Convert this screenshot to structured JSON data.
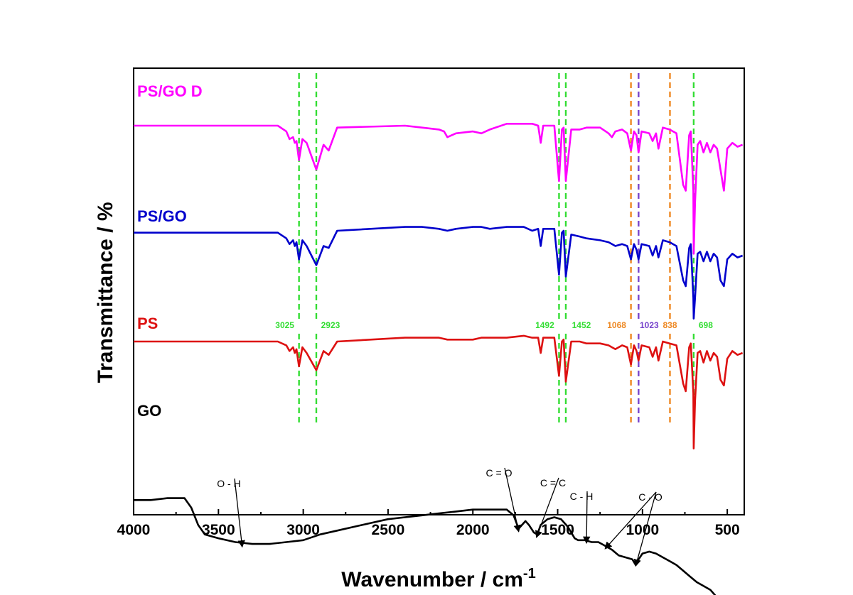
{
  "chart_data": {
    "type": "line",
    "xlabel": "Wavenumber / cm",
    "xlabel_superscript": "-1",
    "ylabel": "Transmittance / %",
    "xlim": [
      4000,
      400
    ],
    "x_reversed": true,
    "xticks": [
      4000,
      3500,
      3000,
      2500,
      2000,
      1500,
      1000,
      500
    ],
    "yticks": [],
    "ylim": [
      0,
      10
    ],
    "grid": false,
    "legend": "inline labels",
    "series": [
      {
        "name": "PS/GO D",
        "color": "#ff00ff",
        "x": [
          4000,
          3150,
          3100,
          3081,
          3060,
          3050,
          3040,
          3025,
          3005,
          2980,
          2923,
          2880,
          2850,
          2800,
          2400,
          2300,
          2200,
          2170,
          2150,
          2100,
          2000,
          1950,
          1900,
          1800,
          1700,
          1650,
          1615,
          1600,
          1585,
          1560,
          1520,
          1492,
          1475,
          1465,
          1452,
          1420,
          1370,
          1330,
          1250,
          1200,
          1180,
          1160,
          1120,
          1090,
          1068,
          1050,
          1035,
          1023,
          1005,
          960,
          940,
          920,
          906,
          880,
          840,
          800,
          760,
          745,
          725,
          715,
          700,
          698,
          690,
          675,
          660,
          640,
          620,
          600,
          580,
          560,
          540,
          520,
          500,
          470,
          440,
          410
        ],
        "y": [
          9.0,
          9.0,
          8.85,
          8.65,
          8.7,
          8.55,
          8.6,
          8.1,
          8.65,
          8.55,
          7.85,
          8.5,
          8.35,
          8.95,
          9.0,
          8.95,
          8.9,
          8.85,
          8.7,
          8.8,
          8.85,
          8.8,
          8.9,
          9.05,
          9.05,
          9.05,
          9.0,
          8.55,
          9.0,
          9.0,
          9.0,
          7.55,
          8.9,
          8.95,
          7.55,
          8.9,
          8.9,
          8.95,
          8.95,
          8.8,
          8.7,
          8.85,
          8.9,
          8.8,
          8.35,
          8.85,
          8.75,
          8.3,
          8.85,
          8.8,
          8.6,
          8.8,
          8.4,
          8.95,
          8.9,
          8.8,
          7.45,
          7.3,
          8.75,
          8.85,
          7.3,
          5.65,
          7.0,
          8.5,
          8.6,
          8.3,
          8.55,
          8.3,
          8.5,
          8.4,
          7.85,
          7.3,
          8.4,
          8.55,
          8.45,
          8.5
        ]
      },
      {
        "name": "PS/GO",
        "color": "#0000cc",
        "x": [
          4000,
          3150,
          3100,
          3081,
          3060,
          3050,
          3040,
          3025,
          3005,
          2980,
          2923,
          2880,
          2850,
          2800,
          2400,
          2300,
          2200,
          2150,
          2100,
          2000,
          1950,
          1900,
          1800,
          1700,
          1650,
          1615,
          1600,
          1585,
          1560,
          1520,
          1492,
          1475,
          1465,
          1452,
          1420,
          1370,
          1330,
          1250,
          1200,
          1180,
          1160,
          1120,
          1090,
          1068,
          1050,
          1035,
          1023,
          1005,
          960,
          940,
          920,
          906,
          880,
          840,
          800,
          760,
          745,
          725,
          715,
          700,
          698,
          690,
          675,
          660,
          640,
          620,
          600,
          580,
          560,
          540,
          520,
          500,
          470,
          440,
          410
        ],
        "y": [
          6.2,
          6.2,
          6.05,
          5.9,
          6.0,
          5.85,
          5.95,
          5.5,
          6.0,
          5.85,
          5.35,
          5.85,
          5.8,
          6.25,
          6.35,
          6.35,
          6.3,
          6.25,
          6.3,
          6.35,
          6.35,
          6.3,
          6.35,
          6.35,
          6.25,
          6.3,
          5.85,
          6.3,
          6.3,
          6.3,
          5.1,
          6.2,
          6.25,
          5.05,
          6.15,
          6.1,
          6.05,
          6.0,
          5.95,
          5.9,
          5.85,
          5.9,
          5.85,
          5.5,
          5.9,
          5.75,
          5.5,
          5.9,
          5.85,
          5.6,
          5.85,
          5.55,
          6.0,
          5.95,
          5.85,
          4.95,
          4.8,
          5.8,
          5.9,
          4.5,
          3.95,
          4.5,
          5.65,
          5.7,
          5.45,
          5.7,
          5.45,
          5.65,
          5.55,
          4.95,
          4.8,
          5.5,
          5.65,
          5.55,
          5.6
        ]
      },
      {
        "name": "PS",
        "color": "#dd1111",
        "x": [
          4000,
          3150,
          3100,
          3081,
          3060,
          3050,
          3040,
          3025,
          3005,
          2980,
          2923,
          2880,
          2850,
          2800,
          2400,
          2300,
          2200,
          2150,
          2100,
          2000,
          1950,
          1900,
          1800,
          1700,
          1650,
          1615,
          1600,
          1585,
          1560,
          1520,
          1492,
          1475,
          1465,
          1452,
          1420,
          1370,
          1330,
          1250,
          1200,
          1180,
          1160,
          1120,
          1090,
          1068,
          1050,
          1035,
          1023,
          1005,
          960,
          940,
          920,
          906,
          880,
          840,
          800,
          760,
          745,
          725,
          715,
          700,
          698,
          690,
          675,
          660,
          640,
          620,
          600,
          580,
          560,
          540,
          520,
          500,
          470,
          440,
          410
        ],
        "y": [
          3.35,
          3.35,
          3.25,
          3.1,
          3.2,
          3.05,
          3.15,
          2.7,
          3.2,
          3.05,
          2.6,
          3.1,
          3.0,
          3.35,
          3.45,
          3.45,
          3.45,
          3.4,
          3.4,
          3.4,
          3.45,
          3.45,
          3.45,
          3.5,
          3.45,
          3.45,
          3.05,
          3.45,
          3.45,
          3.45,
          2.45,
          3.35,
          3.4,
          2.3,
          3.35,
          3.35,
          3.3,
          3.3,
          3.25,
          3.2,
          3.15,
          3.25,
          3.2,
          2.75,
          3.25,
          3.1,
          2.85,
          3.25,
          3.2,
          2.95,
          3.2,
          2.85,
          3.35,
          3.3,
          3.25,
          2.25,
          2.05,
          3.2,
          3.3,
          2.0,
          0.55,
          1.8,
          3.05,
          3.1,
          2.8,
          3.1,
          2.85,
          3.05,
          2.95,
          2.35,
          2.2,
          2.9,
          3.1,
          3.0,
          3.05
        ]
      },
      {
        "name": "GO",
        "color": "#000000",
        "x": [
          4000,
          3900,
          3800,
          3700,
          3660,
          3620,
          3580,
          3500,
          3400,
          3300,
          3200,
          3100,
          3000,
          2900,
          2800,
          2700,
          2600,
          2500,
          2400,
          2300,
          2200,
          2100,
          2000,
          1900,
          1800,
          1760,
          1730,
          1710,
          1690,
          1670,
          1640,
          1620,
          1600,
          1560,
          1520,
          1480,
          1440,
          1400,
          1380,
          1340,
          1300,
          1260,
          1220,
          1180,
          1140,
          1100,
          1060,
          1040,
          1030,
          1000,
          960,
          920,
          880,
          840,
          800,
          760,
          720,
          680,
          640,
          600,
          560,
          520,
          480,
          440,
          410
        ],
        "y": [
          -0.8,
          -0.8,
          -0.75,
          -0.75,
          -1.0,
          -1.45,
          -1.7,
          -1.8,
          -1.9,
          -1.95,
          -1.95,
          -1.9,
          -1.85,
          -1.7,
          -1.6,
          -1.5,
          -1.4,
          -1.3,
          -1.25,
          -1.2,
          -1.15,
          -1.1,
          -1.05,
          -1.05,
          -1.05,
          -1.2,
          -1.55,
          -1.45,
          -1.35,
          -1.45,
          -1.65,
          -1.7,
          -1.45,
          -1.3,
          -1.25,
          -1.3,
          -1.5,
          -1.8,
          -1.85,
          -1.85,
          -1.9,
          -1.9,
          -2.0,
          -2.1,
          -2.25,
          -2.3,
          -2.35,
          -2.5,
          -2.4,
          -2.2,
          -2.15,
          -2.2,
          -2.3,
          -2.4,
          -2.5,
          -2.65,
          -2.8,
          -2.95,
          -3.05,
          -3.15,
          -3.35,
          -3.5,
          -3.65,
          -3.8,
          -3.95
        ]
      }
    ],
    "reference_lines": [
      {
        "x": 3025,
        "label": "3025",
        "color": "#33dd33"
      },
      {
        "x": 2923,
        "label": "2923",
        "color": "#33dd33"
      },
      {
        "x": 1492,
        "label": "1492",
        "color": "#33dd33"
      },
      {
        "x": 1452,
        "label": "1452",
        "color": "#33dd33"
      },
      {
        "x": 1068,
        "label": "1068",
        "color": "#ee8822"
      },
      {
        "x": 1023,
        "label": "1023",
        "color": "#7744cc"
      },
      {
        "x": 838,
        "label": "838",
        "color": "#ee8822"
      },
      {
        "x": 698,
        "label": "698",
        "color": "#33dd33"
      }
    ],
    "annotations": [
      {
        "text": "O - H",
        "target_x": 3360,
        "target_y": -1.95
      },
      {
        "text": "C = O",
        "target_x": 1730,
        "target_y": -1.55
      },
      {
        "text": "C = C",
        "target_x": 1625,
        "target_y": -1.7
      },
      {
        "text": "C - H",
        "target_x": 1330,
        "target_y": -1.85
      },
      {
        "text": "C - O",
        "target_x": 1220,
        "target_y": -2.0
      },
      {
        "text": "C - O",
        "target_x": 1040,
        "target_y": -2.45
      }
    ]
  }
}
